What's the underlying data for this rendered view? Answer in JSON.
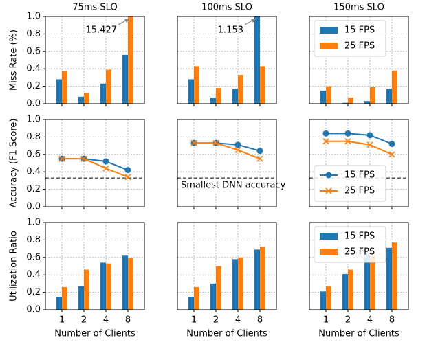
{
  "chart_data": [
    {
      "type": "bar",
      "title": "75ms SLO",
      "ylabel": "Miss Rate (%)",
      "categories": [
        "1",
        "2",
        "4",
        "8"
      ],
      "series": [
        {
          "name": "15 FPS",
          "color": "#1f77b4",
          "values": [
            0.28,
            0.08,
            0.23,
            0.56
          ]
        },
        {
          "name": "25 FPS",
          "color": "#ff7f0e",
          "values": [
            0.37,
            0.12,
            0.39,
            15.427
          ],
          "value_labels": [
            null,
            null,
            null,
            "15.427"
          ]
        }
      ],
      "ylim": [
        0,
        1
      ],
      "yticks": [
        {
          "value": 0,
          "label": "0.0"
        },
        {
          "value": 0.2,
          "label": "0.2"
        },
        {
          "value": 0.4,
          "label": "0.4"
        },
        {
          "value": 0.6,
          "label": "0.6"
        },
        {
          "value": 0.8,
          "label": "0.8"
        },
        {
          "value": 1,
          "label": "1.0"
        }
      ],
      "grid": true
    },
    {
      "type": "bar",
      "title": "100ms SLO",
      "categories": [
        "1",
        "2",
        "4",
        "8"
      ],
      "series": [
        {
          "name": "15 FPS",
          "color": "#1f77b4",
          "values": [
            0.28,
            0.07,
            0.17,
            1.153
          ],
          "value_labels": [
            null,
            null,
            null,
            "1.153"
          ]
        },
        {
          "name": "25 FPS",
          "color": "#ff7f0e",
          "values": [
            0.43,
            0.18,
            0.33,
            0.43
          ]
        }
      ],
      "ylim": [
        0,
        1
      ],
      "yticks": [
        {
          "value": 0,
          "label": "0.0"
        },
        {
          "value": 0.2,
          "label": "0.2"
        },
        {
          "value": 0.4,
          "label": "0.4"
        },
        {
          "value": 0.6,
          "label": "0.6"
        },
        {
          "value": 0.8,
          "label": "0.8"
        },
        {
          "value": 1,
          "label": "1.0"
        }
      ],
      "grid": true
    },
    {
      "type": "bar",
      "title": "150ms SLO",
      "categories": [
        "1",
        "2",
        "4",
        "8"
      ],
      "series": [
        {
          "name": "15 FPS",
          "color": "#1f77b4",
          "values": [
            0.15,
            0.01,
            0.03,
            0.17
          ]
        },
        {
          "name": "25 FPS",
          "color": "#ff7f0e",
          "values": [
            0.2,
            0.07,
            0.19,
            0.38
          ]
        }
      ],
      "ylim": [
        0,
        1
      ],
      "yticks": [
        {
          "value": 0,
          "label": "0.0"
        },
        {
          "value": 0.2,
          "label": "0.2"
        },
        {
          "value": 0.4,
          "label": "0.4"
        },
        {
          "value": 0.6,
          "label": "0.6"
        },
        {
          "value": 0.8,
          "label": "0.8"
        },
        {
          "value": 1,
          "label": "1.0"
        }
      ],
      "grid": true,
      "legend": "upper left"
    },
    {
      "type": "line",
      "ylabel": "Accuracy (F1 Score)",
      "categories": [
        "1",
        "2",
        "4",
        "8"
      ],
      "series": [
        {
          "name": "15 FPS",
          "color": "#1f77b4",
          "marker": "circle",
          "values": [
            0.55,
            0.55,
            0.52,
            0.42
          ]
        },
        {
          "name": "25 FPS",
          "color": "#ff7f0e",
          "marker": "x",
          "values": [
            0.55,
            0.55,
            0.44,
            0.34
          ]
        }
      ],
      "hline": 0.33,
      "ylim": [
        0,
        1
      ],
      "yticks": [
        {
          "value": 0,
          "label": "0.0"
        },
        {
          "value": 0.2,
          "label": "0.2"
        },
        {
          "value": 0.4,
          "label": "0.4"
        },
        {
          "value": 0.6,
          "label": "0.6"
        },
        {
          "value": 0.8,
          "label": "0.8"
        },
        {
          "value": 1,
          "label": "1.0"
        }
      ],
      "grid": true
    },
    {
      "type": "line",
      "categories": [
        "1",
        "2",
        "4",
        "8"
      ],
      "series": [
        {
          "name": "15 FPS",
          "color": "#1f77b4",
          "marker": "circle",
          "values": [
            0.73,
            0.73,
            0.71,
            0.64
          ]
        },
        {
          "name": "25 FPS",
          "color": "#ff7f0e",
          "marker": "x",
          "values": [
            0.73,
            0.73,
            0.65,
            0.55
          ]
        }
      ],
      "hline": 0.33,
      "hline_label": "Smallest DNN accuracy",
      "ylim": [
        0,
        1
      ],
      "yticks": [
        {
          "value": 0,
          "label": "0.0"
        },
        {
          "value": 0.2,
          "label": "0.2"
        },
        {
          "value": 0.4,
          "label": "0.4"
        },
        {
          "value": 0.6,
          "label": "0.6"
        },
        {
          "value": 0.8,
          "label": "0.8"
        },
        {
          "value": 1,
          "label": "1.0"
        }
      ],
      "grid": true
    },
    {
      "type": "line",
      "categories": [
        "1",
        "2",
        "4",
        "8"
      ],
      "series": [
        {
          "name": "15 FPS",
          "color": "#1f77b4",
          "marker": "circle",
          "values": [
            0.84,
            0.84,
            0.82,
            0.72
          ]
        },
        {
          "name": "25 FPS",
          "color": "#ff7f0e",
          "marker": "x",
          "values": [
            0.75,
            0.75,
            0.71,
            0.6
          ]
        }
      ],
      "hline": 0.33,
      "ylim": [
        0,
        1
      ],
      "yticks": [
        {
          "value": 0,
          "label": "0.0"
        },
        {
          "value": 0.2,
          "label": "0.2"
        },
        {
          "value": 0.4,
          "label": "0.4"
        },
        {
          "value": 0.6,
          "label": "0.6"
        },
        {
          "value": 0.8,
          "label": "0.8"
        },
        {
          "value": 1,
          "label": "1.0"
        }
      ],
      "grid": true,
      "legend": "lower left"
    },
    {
      "type": "bar",
      "ylabel": "Utilization Ratio",
      "xlabel": "Number of Clients",
      "categories": [
        "1",
        "2",
        "4",
        "8"
      ],
      "series": [
        {
          "name": "15 FPS",
          "color": "#1f77b4",
          "values": [
            0.15,
            0.27,
            0.54,
            0.62
          ]
        },
        {
          "name": "25 FPS",
          "color": "#ff7f0e",
          "values": [
            0.26,
            0.46,
            0.53,
            0.59
          ]
        }
      ],
      "ylim": [
        0,
        1
      ],
      "yticks": [
        {
          "value": 0,
          "label": "0.0"
        },
        {
          "value": 0.2,
          "label": "0.2"
        },
        {
          "value": 0.4,
          "label": "0.4"
        },
        {
          "value": 0.6,
          "label": "0.6"
        },
        {
          "value": 0.8,
          "label": "0.8"
        },
        {
          "value": 1,
          "label": "1.0"
        }
      ],
      "grid": true
    },
    {
      "type": "bar",
      "xlabel": "Number of Clients",
      "categories": [
        "1",
        "2",
        "4",
        "8"
      ],
      "series": [
        {
          "name": "15 FPS",
          "color": "#1f77b4",
          "values": [
            0.15,
            0.3,
            0.58,
            0.69
          ]
        },
        {
          "name": "25 FPS",
          "color": "#ff7f0e",
          "values": [
            0.26,
            0.5,
            0.6,
            0.72
          ]
        }
      ],
      "ylim": [
        0,
        1
      ],
      "yticks": [
        {
          "value": 0,
          "label": "0.0"
        },
        {
          "value": 0.2,
          "label": "0.2"
        },
        {
          "value": 0.4,
          "label": "0.4"
        },
        {
          "value": 0.6,
          "label": "0.6"
        },
        {
          "value": 0.8,
          "label": "0.8"
        },
        {
          "value": 1,
          "label": "1.0"
        }
      ],
      "grid": true
    },
    {
      "type": "bar",
      "xlabel": "Number of Clients",
      "categories": [
        "1",
        "2",
        "4",
        "8"
      ],
      "series": [
        {
          "name": "15 FPS",
          "color": "#1f77b4",
          "values": [
            0.21,
            0.41,
            0.64,
            0.71
          ]
        },
        {
          "name": "25 FPS",
          "color": "#ff7f0e",
          "values": [
            0.27,
            0.46,
            0.62,
            0.77
          ]
        }
      ],
      "ylim": [
        0,
        1
      ],
      "yticks": [
        {
          "value": 0,
          "label": "0.0"
        },
        {
          "value": 0.2,
          "label": "0.2"
        },
        {
          "value": 0.4,
          "label": "0.4"
        },
        {
          "value": 0.6,
          "label": "0.6"
        },
        {
          "value": 0.8,
          "label": "0.8"
        },
        {
          "value": 1,
          "label": "1.0"
        }
      ],
      "grid": true,
      "legend": "upper left"
    }
  ]
}
